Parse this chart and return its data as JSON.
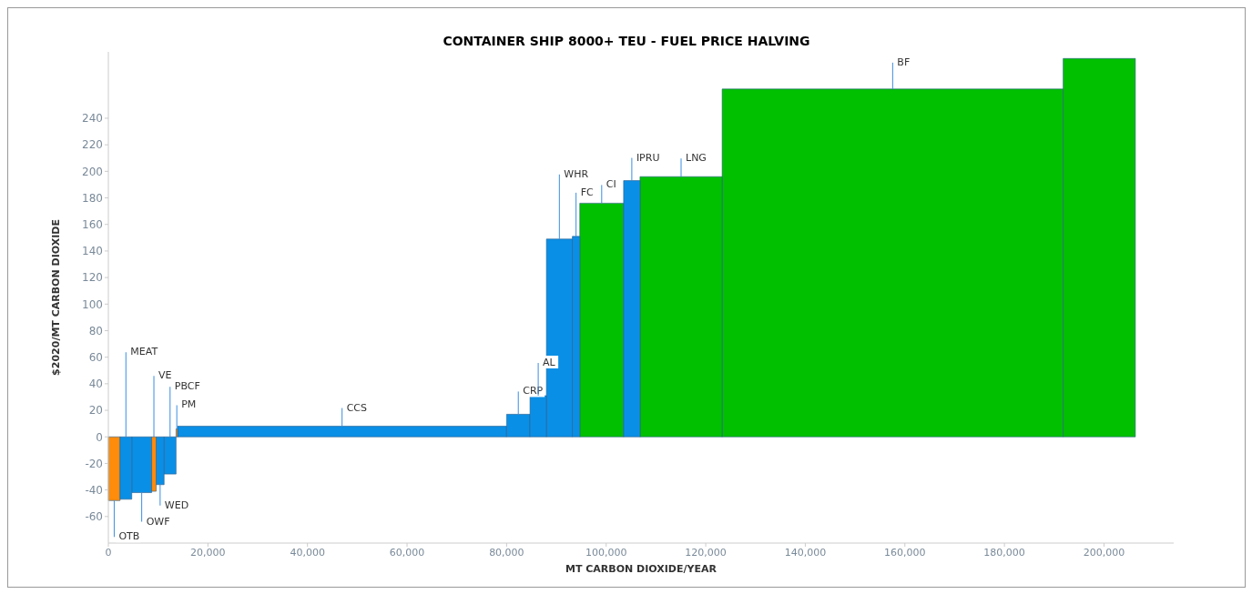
{
  "chart_data": {
    "type": "histogram",
    "title": "CONTAINER SHIP 8000+ TEU - FUEL PRICE HALVING",
    "xlabel": "MT CARBON DIOXIDE/YEAR",
    "ylabel": "$2020/MT CARBON DIOXIDE",
    "bins": [
      0,
      2350,
      4700,
      8700,
      9600,
      11200,
      13600,
      13900,
      80000,
      84700,
      88000,
      93200,
      94700,
      103500,
      106800,
      123300,
      191800,
      206300
    ],
    "values": [
      -48,
      -47,
      -42,
      -41,
      -36,
      -28,
      6,
      8,
      17,
      31,
      149,
      151,
      176,
      193,
      196,
      262,
      285
    ],
    "colors": [
      "#ff8c0a",
      "#0a8fe6",
      "#0a8fe6",
      "#ff8c0a",
      "#0a8fe6",
      "#0a8fe6",
      "#ff8c0a",
      "#0a8fe6",
      "#0a8fe6",
      "#0a8fe6",
      "#0a8fe6",
      "#0a8fe6",
      "#00c000",
      "#0a8fe6",
      "#00c000",
      "#00c000",
      "#00c000"
    ],
    "xlim": [
      0,
      214000
    ],
    "xticks": [
      0,
      {
        "value": 20000,
        "label": "20,000"
      },
      {
        "value": 40000,
        "label": "40,000"
      },
      {
        "value": 60000,
        "label": "60,000"
      },
      {
        "value": 80000,
        "label": "80,000"
      },
      {
        "value": 100000,
        "label": "100,000"
      },
      {
        "value": 120000,
        "label": "120,000"
      },
      {
        "value": 140000,
        "label": "140,000"
      },
      {
        "value": 160000,
        "label": "160,000"
      },
      {
        "value": 180000,
        "label": "180,000"
      },
      {
        "value": 200000,
        "label": "200,000"
      }
    ],
    "ylim": [
      -80,
      290
    ],
    "yticks": [
      -60,
      -40,
      -20,
      0,
      20,
      40,
      60,
      80,
      100,
      120,
      140,
      160,
      180,
      200,
      220,
      240
    ],
    "grid": false,
    "annotations": [
      {
        "text": "OTB",
        "x": 1175,
        "y": -48
      },
      {
        "text": "MEAT",
        "x": 3525,
        "y": 0
      },
      {
        "text": "OWF",
        "x": 6700,
        "y": -42
      },
      {
        "text": "VE",
        "x": 9150,
        "y": 0
      },
      {
        "text": "WED",
        "x": 10400,
        "y": -36
      },
      {
        "text": "PBCF",
        "x": 12400,
        "y": 0
      },
      {
        "text": "PM",
        "x": 13750,
        "y": 6
      },
      {
        "text": "CCS",
        "x": 46950,
        "y": 8
      },
      {
        "text": "CRP",
        "x": 82350,
        "y": 17
      },
      {
        "text": "AL",
        "x": 86350,
        "y": 31
      },
      {
        "text": "WHR",
        "x": 90600,
        "y": 149
      },
      {
        "text": "FC",
        "x": 93950,
        "y": 151
      },
      {
        "text": "CI",
        "x": 99100,
        "y": 176
      },
      {
        "text": "IPRU",
        "x": 105150,
        "y": 193
      },
      {
        "text": "LNG",
        "x": 115050,
        "y": 196
      },
      {
        "text": "BF",
        "x": 157550,
        "y": 262
      }
    ]
  }
}
